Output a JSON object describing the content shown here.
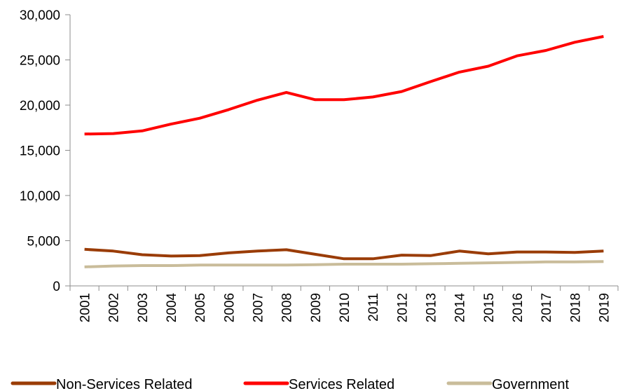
{
  "chart_data": {
    "type": "line",
    "title": "",
    "xlabel": "",
    "ylabel": "",
    "x": [
      "2001",
      "2002",
      "2003",
      "2004",
      "2005",
      "2006",
      "2007",
      "2008",
      "2009",
      "2010",
      "2011",
      "2012",
      "2013",
      "2014",
      "2015",
      "2016",
      "2017",
      "2018",
      "2019"
    ],
    "ylim": [
      0,
      30000
    ],
    "yticks": [
      0,
      5000,
      10000,
      15000,
      20000,
      25000,
      30000
    ],
    "ytick_labels": [
      "0",
      "5,000",
      "10,000",
      "15,000",
      "20,000",
      "25,000",
      "30,000"
    ],
    "grid": false,
    "legend_position": "bottom",
    "series": [
      {
        "name": "Non-Services Related",
        "color": "#9a3c06",
        "values": [
          4050,
          3850,
          3450,
          3300,
          3350,
          3650,
          3850,
          4000,
          3500,
          3000,
          3000,
          3400,
          3350,
          3850,
          3550,
          3750,
          3750,
          3700,
          3850
        ]
      },
      {
        "name": "Services Related",
        "color": "#ff0000",
        "values": [
          16800,
          16850,
          17150,
          17900,
          18550,
          19500,
          20550,
          21400,
          20600,
          20600,
          20900,
          21500,
          22600,
          23650,
          24300,
          25450,
          26050,
          26950,
          27600
        ]
      },
      {
        "name": "Government",
        "color": "#c9bc9a",
        "values": [
          2100,
          2200,
          2250,
          2250,
          2300,
          2300,
          2300,
          2300,
          2350,
          2400,
          2400,
          2400,
          2450,
          2500,
          2550,
          2600,
          2650,
          2650,
          2700
        ]
      }
    ]
  }
}
